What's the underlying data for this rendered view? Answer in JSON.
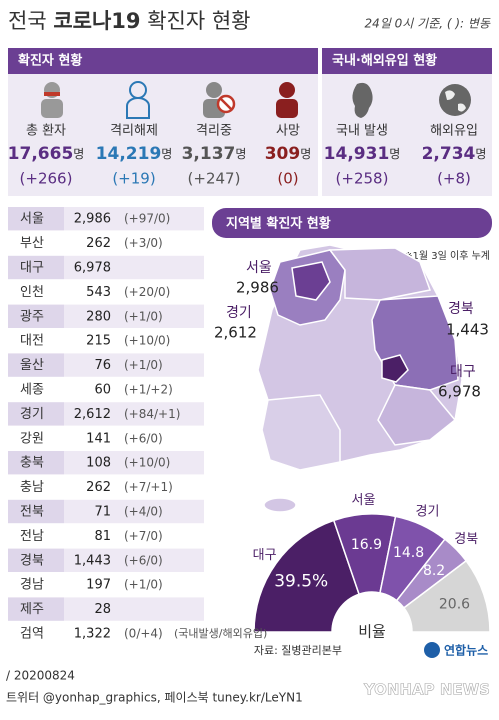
{
  "header": {
    "title_parts": [
      "전국 ",
      "코로나19",
      " 확진자 현황"
    ],
    "basis": "24일 0시 기준, ( ): 변동"
  },
  "summary": {
    "title": "확진자 현황",
    "items": [
      {
        "label": "총 환자",
        "value": "17,665",
        "unit": "명",
        "change": "(+266)",
        "color": "#5a2d82"
      },
      {
        "label": "격리해제",
        "value": "14,219",
        "unit": "명",
        "change": "(+19)",
        "color": "#2b78b5"
      },
      {
        "label": "격리중",
        "value": "3,137",
        "unit": "명",
        "change": "(+247)",
        "color": "#555555"
      },
      {
        "label": "사망",
        "value": "309",
        "unit": "명",
        "change": "(0)",
        "color": "#8a1f1f"
      }
    ]
  },
  "origin": {
    "title": "국내·해외유입 현황",
    "items": [
      {
        "label": "국내 발생",
        "value": "14,931",
        "unit": "명",
        "change": "(+258)",
        "color": "#5a2d82"
      },
      {
        "label": "해외유입",
        "value": "2,734",
        "unit": "명",
        "change": "(+8)",
        "color": "#5a2d82"
      }
    ]
  },
  "regions": {
    "rows": [
      [
        "서울",
        "2,986",
        "(+97/0)"
      ],
      [
        "부산",
        "262",
        "(+3/0)"
      ],
      [
        "대구",
        "6,978"
      ],
      [
        "인천",
        "543",
        "(+20/0)"
      ],
      [
        "광주",
        "280",
        "(+1/0)"
      ],
      [
        "대전",
        "215",
        "(+10/0)"
      ],
      [
        "울산",
        "76",
        "(+1/0)"
      ],
      [
        "세종",
        "60",
        "(+1/+2)"
      ],
      [
        "경기",
        "2,612",
        "(+84/+1)"
      ],
      [
        "강원",
        "141",
        "(+6/0)"
      ],
      [
        "충북",
        "108",
        "(+10/0)"
      ],
      [
        "충남",
        "262",
        "(+7/+1)"
      ],
      [
        "전북",
        "71",
        "(+4/0)"
      ],
      [
        "전남",
        "81",
        "(+7/0)"
      ],
      [
        "경북",
        "1,443",
        "(+6/0)"
      ],
      [
        "경남",
        "197",
        "(+1/0)"
      ],
      [
        "제주",
        "28"
      ],
      [
        "검역",
        "1,322",
        "(0/+4)"
      ]
    ],
    "note": "(국내발생/해외유입)"
  },
  "map": {
    "title": "지역별 확진자 현황",
    "note": "※1월 3일 이후 누계",
    "labels": [
      {
        "name": "서울",
        "value": "2,986"
      },
      {
        "name": "경기",
        "value": "2,612"
      },
      {
        "name": "경북",
        "value": "1,443"
      },
      {
        "name": "대구",
        "value": "6,978"
      }
    ]
  },
  "ratio": {
    "center": "비율",
    "categories": [
      "대구",
      "서울",
      "경기",
      "경북",
      null
    ],
    "values": [
      39.5,
      16.9,
      14.8,
      8.2,
      20.6
    ],
    "value_labels": [
      "39.5%",
      "16.9",
      "14.8",
      "8.2",
      "20.6"
    ],
    "colors": [
      "#4b1f66",
      "#6b3a92",
      "#7f52ab",
      "#a88bc8",
      "#d6d6d6"
    ]
  },
  "footer": {
    "source": "자료: 질병관리본부",
    "logo": "연합뉴스",
    "date": "/ 20200824",
    "sns": "트위터 @yonhap_graphics, 페이스북 tuney.kr/LeYN1",
    "watermark": "YONHAP NEWS"
  }
}
